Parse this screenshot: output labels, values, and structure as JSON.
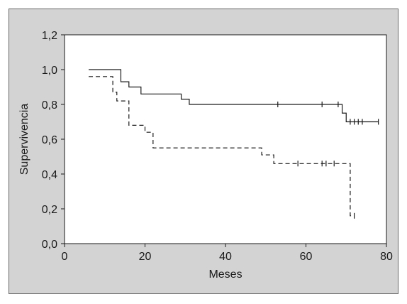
{
  "chart_data": {
    "type": "line",
    "xlabel": "Meses",
    "ylabel": "Supervivencia",
    "xlim": [
      0,
      80
    ],
    "ylim": [
      0,
      1.2
    ],
    "x_ticks": [
      0,
      20,
      40,
      60,
      80
    ],
    "x_tick_labels": [
      "0",
      "20",
      "40",
      "60",
      "80"
    ],
    "y_ticks": [
      0,
      0.2,
      0.4,
      0.6,
      0.8,
      1.0,
      1.2
    ],
    "y_tick_labels": [
      "0,0",
      "0,2",
      "0,4",
      "0,6",
      "0,8",
      "1,0",
      "1,2"
    ],
    "grid": false,
    "background": "#d3d3d3",
    "plot_background": "#ffffff",
    "series": [
      {
        "style": "solid",
        "color": "#1a1a1a",
        "steps": [
          {
            "x": 6,
            "y": 1.0
          },
          {
            "x": 14,
            "y": 0.93
          },
          {
            "x": 16,
            "y": 0.9
          },
          {
            "x": 19,
            "y": 0.86
          },
          {
            "x": 29,
            "y": 0.83
          },
          {
            "x": 31,
            "y": 0.8
          },
          {
            "x": 69,
            "y": 0.75
          },
          {
            "x": 70,
            "y": 0.7
          },
          {
            "x": 78,
            "y": 0.7
          }
        ],
        "censored": [
          53,
          64,
          68,
          71,
          72,
          73,
          74,
          78
        ]
      },
      {
        "style": "dashed",
        "color": "#1a1a1a",
        "steps": [
          {
            "x": 6,
            "y": 0.96
          },
          {
            "x": 12,
            "y": 0.87
          },
          {
            "x": 13,
            "y": 0.82
          },
          {
            "x": 16,
            "y": 0.68
          },
          {
            "x": 20,
            "y": 0.64
          },
          {
            "x": 22,
            "y": 0.55
          },
          {
            "x": 49,
            "y": 0.51
          },
          {
            "x": 52,
            "y": 0.46
          },
          {
            "x": 71,
            "y": 0.16
          },
          {
            "x": 72,
            "y": 0.16
          }
        ],
        "censored": [
          58,
          64,
          65,
          67,
          72
        ]
      }
    ]
  }
}
